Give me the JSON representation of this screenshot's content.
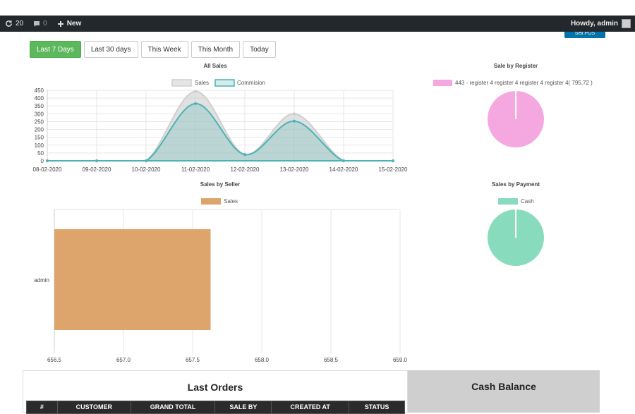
{
  "adminbar": {
    "updates_count": "20",
    "comments_count": "0",
    "new_label": "New",
    "greeting": "Howdy, admin"
  },
  "pos_button_label": "Sell POS",
  "filters": [
    "Last 7 Days",
    "Last 30 days",
    "This Week",
    "This Month",
    "Today"
  ],
  "active_filter": "Last 7 Days",
  "colors": {
    "sales": "#d9d9d9",
    "commission": "#4bb3b3",
    "register": "#f5a8e0",
    "seller": "#dda46b",
    "cash": "#88dcbd",
    "active": "#5cb85c"
  },
  "chart_data": [
    {
      "type": "area",
      "title": "All Sales",
      "x": [
        "08-02-2020",
        "09-02-2020",
        "10-02-2020",
        "11-02-2020",
        "12-02-2020",
        "13-02-2020",
        "14-02-2020",
        "15-02-2020"
      ],
      "series": [
        {
          "name": "Sales",
          "values": [
            0,
            0,
            0,
            443,
            40,
            300,
            0,
            0
          ]
        },
        {
          "name": "Commision",
          "values": [
            0,
            0,
            0,
            365,
            40,
            253,
            0,
            0
          ]
        }
      ],
      "yticks": [
        "0",
        "50",
        "100",
        "150",
        "200",
        "250",
        "300",
        "350",
        "400",
        "450"
      ],
      "ylim": [
        0,
        450
      ],
      "grid": true,
      "legend": "top"
    },
    {
      "type": "pie",
      "title": "Sale by Register",
      "labels": [
        "443 - register 4 register 4 register 4 register 4( 795,72 )"
      ],
      "values": [
        443
      ],
      "legend": "top"
    },
    {
      "type": "bar",
      "orientation": "horizontal",
      "title": "Sales by Seller",
      "categories": [
        "admin"
      ],
      "series": [
        {
          "name": "Sales",
          "values": [
            657.63
          ]
        }
      ],
      "xticks": [
        "656.5",
        "657.0",
        "657.5",
        "658.0",
        "658.5",
        "659.0"
      ],
      "xlim": [
        656.5,
        659.0
      ],
      "grid": true,
      "legend": "top"
    },
    {
      "type": "pie",
      "title": "Sales by Payment",
      "labels": [
        "Cash"
      ],
      "values": [
        1
      ],
      "legend": "top"
    }
  ],
  "orders": {
    "title": "Last Orders",
    "columns": [
      "#",
      "CUSTOMER",
      "GRAND TOTAL",
      "SALE BY",
      "CREATED AT",
      "STATUS"
    ]
  },
  "cash_balance": {
    "title": "Cash Balance"
  }
}
